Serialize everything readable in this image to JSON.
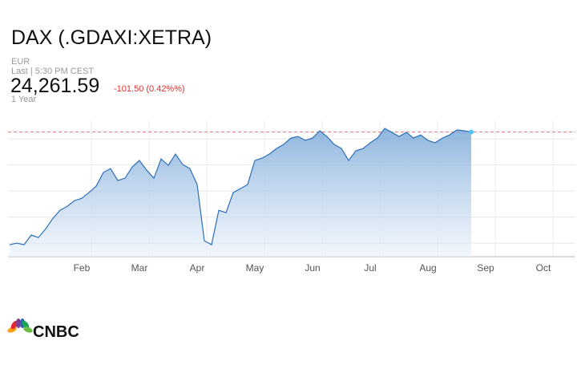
{
  "chart_data": {
    "type": "area",
    "title": "DAX (.GDAXI:XETRA)",
    "currency": "EUR",
    "timestamp": "Last | 5:30 PM CEST",
    "last": {
      "value": 24261.59,
      "label": "24,261.59"
    },
    "change": "-101.50 (0.42%%)",
    "range": "1 Year",
    "logo": "CNBC",
    "categories": [
      null,
      null,
      null,
      null,
      null,
      null,
      null,
      null,
      null,
      null,
      "Feb",
      null,
      null,
      null,
      null,
      null,
      null,
      null,
      "Mar",
      null,
      null,
      null,
      null,
      null,
      null,
      null,
      "Apr",
      null,
      null,
      null,
      null,
      null,
      null,
      null,
      "May",
      null,
      null,
      null,
      null,
      null,
      null,
      null,
      "Jun",
      null,
      null,
      null,
      null,
      null,
      null,
      null,
      "Jul",
      null,
      null,
      null,
      null,
      null,
      null,
      null,
      "Aug",
      null,
      null,
      null,
      null,
      null,
      null,
      null,
      "Sep",
      null,
      null,
      null,
      null,
      null,
      null,
      null,
      "Oct",
      null,
      null,
      null,
      null
    ],
    "values": [
      19940,
      20000,
      19940,
      20310,
      20215,
      20550,
      20950,
      21260,
      21415,
      21630,
      21720,
      21940,
      22185,
      22710,
      22860,
      22400,
      22490,
      22920,
      23170,
      22800,
      22490,
      23230,
      22985,
      23415,
      23015,
      22860,
      22250,
      20090,
      19940,
      21260,
      21170,
      21940,
      22090,
      22250,
      23170,
      23260,
      23415,
      23630,
      23785,
      24030,
      24090,
      23940,
      24030,
      24310,
      24090,
      23785,
      23630,
      23170,
      23540,
      23630,
      23850,
      24030,
      24400,
      24250,
      24090,
      24250,
      24030,
      24150,
      23940,
      23850,
      24030,
      24150,
      24340,
      24310,
      24262,
      null,
      null,
      null,
      null,
      null,
      null,
      null,
      null,
      null,
      null,
      null,
      null,
      null,
      null
    ],
    "color": "#2d6fb7",
    "ylim": [
      19480,
      24710
    ],
    "yticks": [
      20000,
      21000,
      22000,
      23000,
      24000
    ],
    "grid": true
  }
}
